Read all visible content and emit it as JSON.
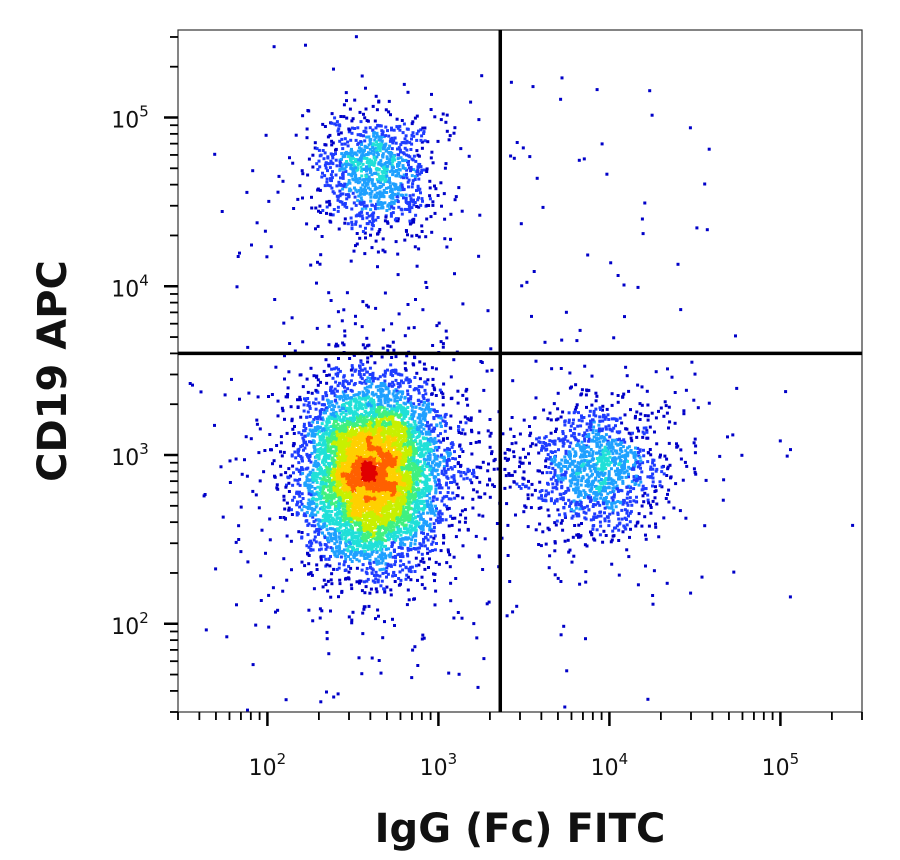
{
  "chart_data": {
    "type": "scatter",
    "subtype": "flow-cytometry-density-dot-plot",
    "title": "",
    "xlabel": "IgG (Fc) FITC",
    "ylabel": "CD19 APC",
    "x_scale": "log",
    "y_scale": "log",
    "xlim": [
      30,
      300000
    ],
    "ylim": [
      30,
      330000
    ],
    "x_ticks": [
      {
        "base": "10",
        "exp": "2",
        "value": 100
      },
      {
        "base": "10",
        "exp": "3",
        "value": 1000
      },
      {
        "base": "10",
        "exp": "4",
        "value": 10000
      },
      {
        "base": "10",
        "exp": "5",
        "value": 100000
      }
    ],
    "y_ticks": [
      {
        "base": "10",
        "exp": "2",
        "value": 100
      },
      {
        "base": "10",
        "exp": "3",
        "value": 1000
      },
      {
        "base": "10",
        "exp": "4",
        "value": 10000
      },
      {
        "base": "10",
        "exp": "5",
        "value": 100000
      }
    ],
    "quadrant_gates": {
      "x": 2300,
      "y": 4000
    },
    "populations": [
      {
        "quadrant": "lower-left",
        "center": [
          400,
          800
        ],
        "approx_events": 6500,
        "peak_color": "#e02000"
      },
      {
        "quadrant": "lower-right",
        "center": [
          8500,
          850
        ],
        "approx_events": 1300,
        "peak_color": "#20c8d8"
      },
      {
        "quadrant": "upper-left",
        "center": [
          420,
          48000
        ],
        "approx_events": 1100,
        "peak_color": "#30c8e0"
      }
    ],
    "color_scale": [
      "#0000c8",
      "#1e3cff",
      "#1ea0ff",
      "#20e0d8",
      "#40f080",
      "#c8f000",
      "#ffd000",
      "#ff6000",
      "#e00000"
    ],
    "grid": false,
    "legend": "none"
  }
}
